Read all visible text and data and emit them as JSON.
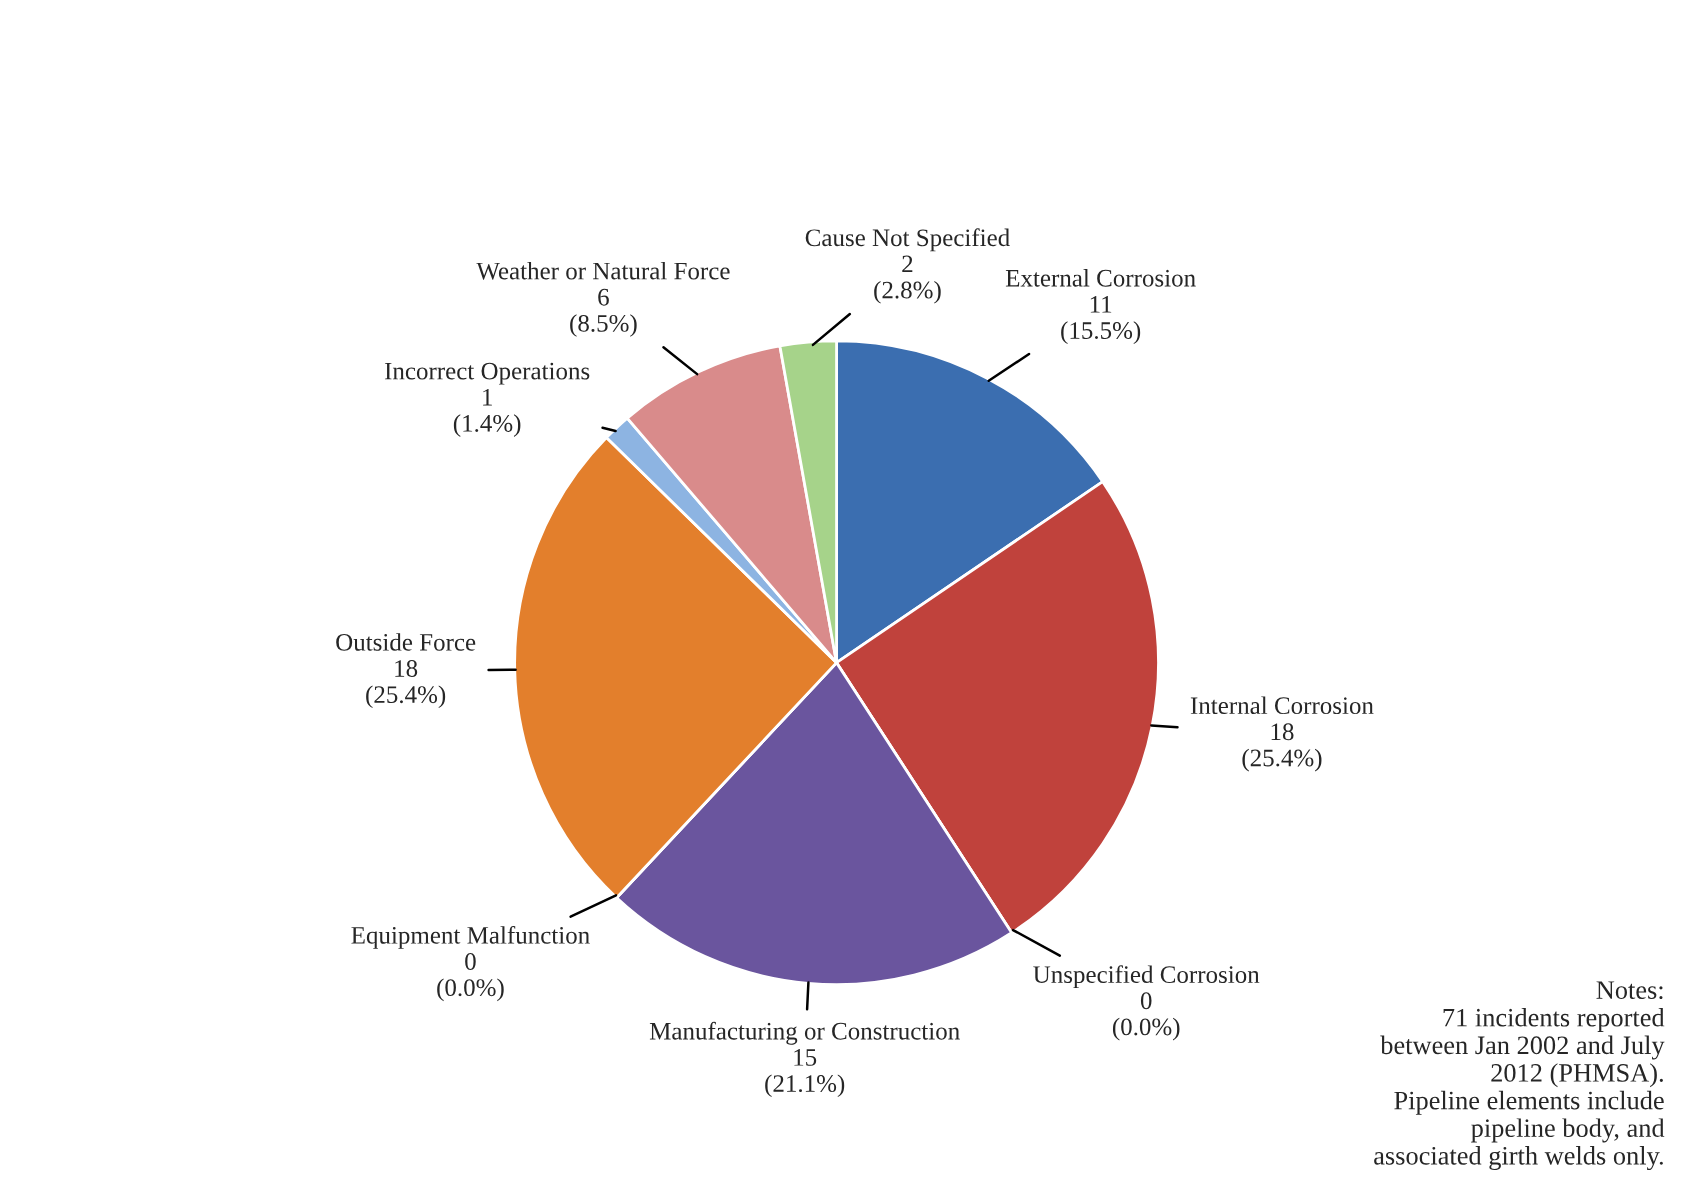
{
  "chart_data": {
    "type": "pie",
    "categories": [
      "External Corrosion",
      "Internal Corrosion",
      "Unspecified Corrosion",
      "Manufacturing or Construction",
      "Equipment Malfunction",
      "Outside Force",
      "Incorrect Operations",
      "Weather or Natural Force",
      "Cause Not Specified"
    ],
    "values": [
      11,
      18,
      0,
      15,
      0,
      18,
      1,
      6,
      2
    ],
    "value_labels": [
      "11\n(15.5%)",
      "18\n(25.4%)",
      "0\n(0.0%)",
      "15\n(21.1%)",
      "0\n(0.0%)",
      "18\n(25.4%)",
      "1\n(1.4%)",
      "6\n(8.5%)",
      "2\n(2.8%)"
    ],
    "colors": [
      "#3b6eb0",
      "#c0423c",
      "#8a8a8a",
      "#6a559e",
      "#5a5a5a",
      "#e37f2c",
      "#8db4e2",
      "#d98b8b",
      "#a6d38a"
    ],
    "annotations": [
      "Notes:\n71 incidents reported\nbetween Jan 2002 and July\n2012 (PHMSA).\nPipeline elements include\npipeline body, and\nassociated girth welds only."
    ]
  }
}
